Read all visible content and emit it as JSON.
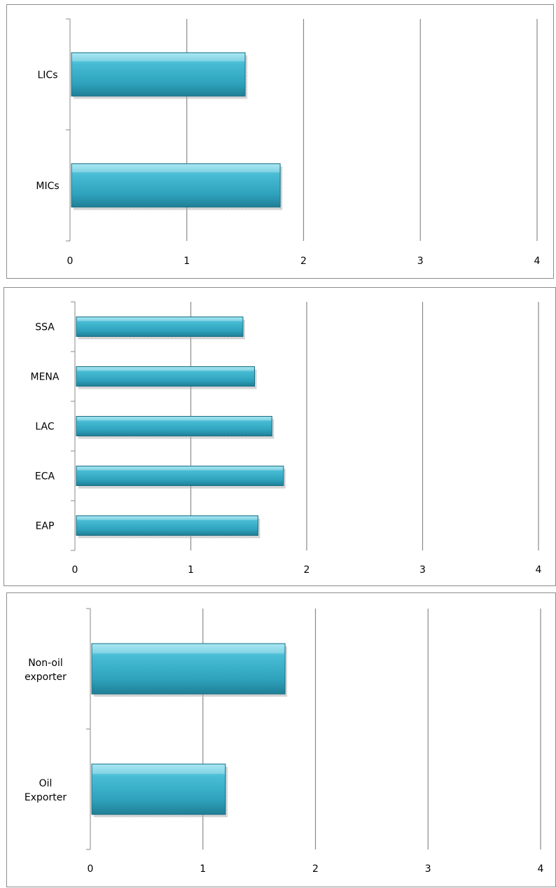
{
  "chart_data": [
    {
      "type": "bar",
      "orientation": "horizontal",
      "categories": [
        "LICs",
        "MICs"
      ],
      "values": [
        1.5,
        1.8
      ],
      "xlim": [
        0,
        4
      ],
      "xticks": [
        "0",
        "1",
        "2",
        "3",
        "4"
      ],
      "grid": true,
      "bar_color": "#2fa3bd"
    },
    {
      "type": "bar",
      "orientation": "horizontal",
      "categories": [
        "SSA",
        "MENA",
        "LAC",
        "ECA",
        "EAP"
      ],
      "values": [
        1.45,
        1.55,
        1.7,
        1.8,
        1.58
      ],
      "xlim": [
        0,
        4
      ],
      "xticks": [
        "0",
        "1",
        "2",
        "3",
        "4"
      ],
      "grid": true,
      "bar_color": "#2fa3bd"
    },
    {
      "type": "bar",
      "orientation": "horizontal",
      "categories": [
        "Non-oil exporter",
        "Oil Exporter"
      ],
      "values": [
        1.73,
        1.2
      ],
      "xlim": [
        0,
        4
      ],
      "xticks": [
        "0",
        "1",
        "2",
        "3",
        "4"
      ],
      "grid": true,
      "bar_color": "#2fa3bd"
    }
  ]
}
